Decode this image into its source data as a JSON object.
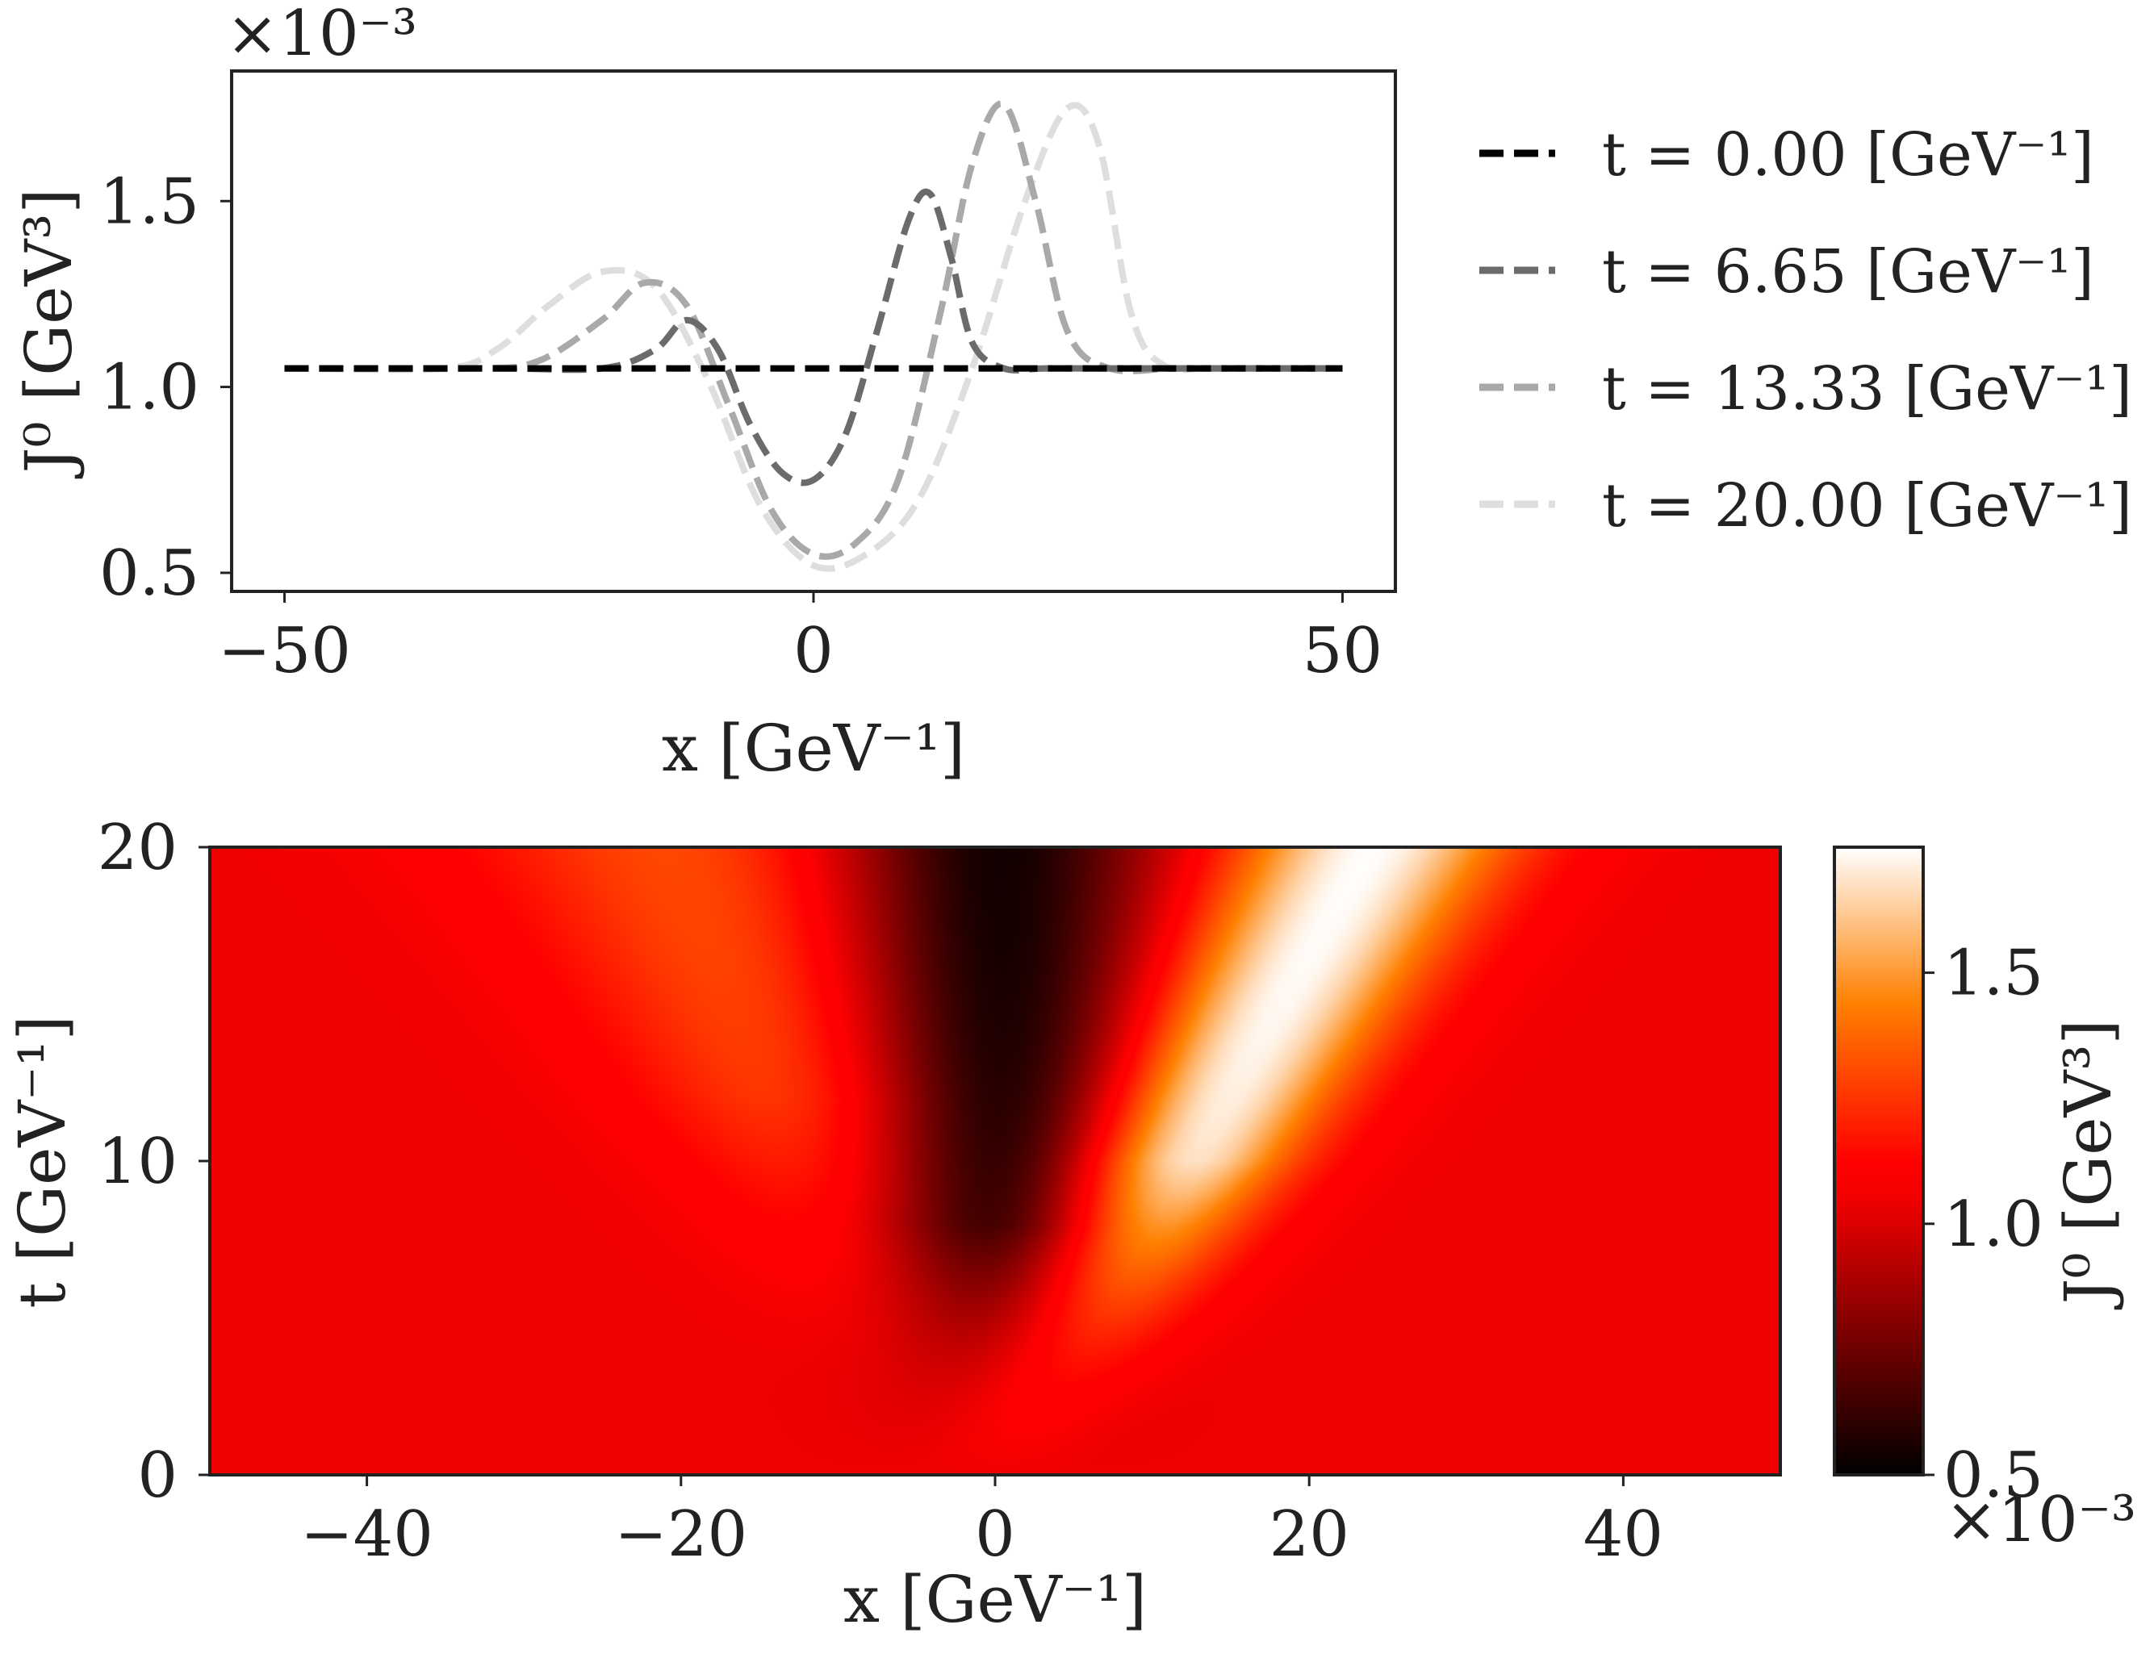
{
  "chart_data": [
    {
      "type": "line",
      "xlabel": "x [GeV⁻¹]",
      "ylabel": "J⁰ [GeV³]",
      "y_scale_label": "×10⁻³",
      "xlim": [
        -55,
        55
      ],
      "ylim": [
        0.45,
        1.85
      ],
      "xticks": [
        -50,
        0,
        50
      ],
      "xtick_labels": [
        "−50",
        "0",
        "50"
      ],
      "yticks": [
        0.5,
        1.0,
        1.5
      ],
      "ytick_labels": [
        "0.5",
        "1.0",
        "1.5"
      ],
      "grid": false,
      "legend_position": "right",
      "line_style": "dashed",
      "series": [
        {
          "name": "t = 0.00 [GeV⁻¹]",
          "color": "#000000",
          "x": [
            -50,
            -40,
            -30,
            -20,
            -10,
            0,
            10,
            20,
            30,
            40,
            50
          ],
          "y": [
            1.05,
            1.05,
            1.05,
            1.05,
            1.05,
            1.05,
            1.05,
            1.05,
            1.05,
            1.05,
            1.05
          ]
        },
        {
          "name": "t = 6.65 [GeV⁻¹]",
          "color": "#6b6b6b",
          "x": [
            -50,
            -30,
            -20,
            -15,
            -12,
            -9,
            -6,
            -3,
            0,
            3,
            6,
            9,
            11,
            13,
            15,
            18,
            22,
            30,
            50
          ],
          "y": [
            1.05,
            1.05,
            1.05,
            1.1,
            1.18,
            1.1,
            0.9,
            0.77,
            0.75,
            0.87,
            1.15,
            1.45,
            1.52,
            1.35,
            1.12,
            1.05,
            1.05,
            1.05,
            1.05
          ]
        },
        {
          "name": "t = 13.33 [GeV⁻¹]",
          "color": "#a9a9a9",
          "x": [
            -50,
            -32,
            -26,
            -20,
            -16,
            -12,
            -8,
            -4,
            0,
            4,
            8,
            12,
            15,
            18,
            21,
            24,
            28,
            35,
            50
          ],
          "y": [
            1.05,
            1.05,
            1.07,
            1.18,
            1.28,
            1.22,
            0.95,
            0.67,
            0.55,
            0.58,
            0.75,
            1.2,
            1.6,
            1.76,
            1.5,
            1.15,
            1.05,
            1.05,
            1.05
          ]
        },
        {
          "name": "t = 20.00 [GeV⁻¹]",
          "color": "#dedede",
          "x": [
            -50,
            -35,
            -30,
            -25,
            -20,
            -15,
            -10,
            -5,
            0,
            5,
            10,
            15,
            20,
            24,
            27,
            30,
            33,
            38,
            50
          ],
          "y": [
            1.05,
            1.05,
            1.1,
            1.22,
            1.31,
            1.27,
            1.02,
            0.68,
            0.52,
            0.55,
            0.7,
            1.05,
            1.5,
            1.75,
            1.65,
            1.2,
            1.06,
            1.05,
            1.05
          ]
        }
      ]
    },
    {
      "type": "heatmap",
      "xlabel": "x [GeV⁻¹]",
      "ylabel": "t [GeV⁻¹]",
      "xlim": [
        -50,
        50
      ],
      "ylim": [
        0,
        20
      ],
      "xticks": [
        -40,
        -20,
        0,
        20,
        40
      ],
      "xtick_labels": [
        "−40",
        "−20",
        "0",
        "20",
        "40"
      ],
      "yticks": [
        0,
        10,
        20
      ],
      "ytick_labels": [
        "0",
        "10",
        "20"
      ],
      "colorbar": {
        "label": "J⁰ [GeV³]",
        "scale_label": "×10⁻³",
        "range": [
          0.5,
          1.75
        ],
        "ticks": [
          0.5,
          1.0,
          1.5
        ],
        "tick_labels": [
          "0.5",
          "1.0",
          "1.5"
        ],
        "colormap": "gist_heat"
      },
      "field_model": {
        "background": 1.05,
        "depression": {
          "x_center": 0.0,
          "min_value": 0.52
        },
        "right_peak": {
          "x_at_t0": 0.0,
          "speed": 1.2,
          "max_value": 1.75
        },
        "left_peak": {
          "x_at_t0": 0.0,
          "speed": -1.0,
          "max_value": 1.31
        }
      }
    }
  ]
}
